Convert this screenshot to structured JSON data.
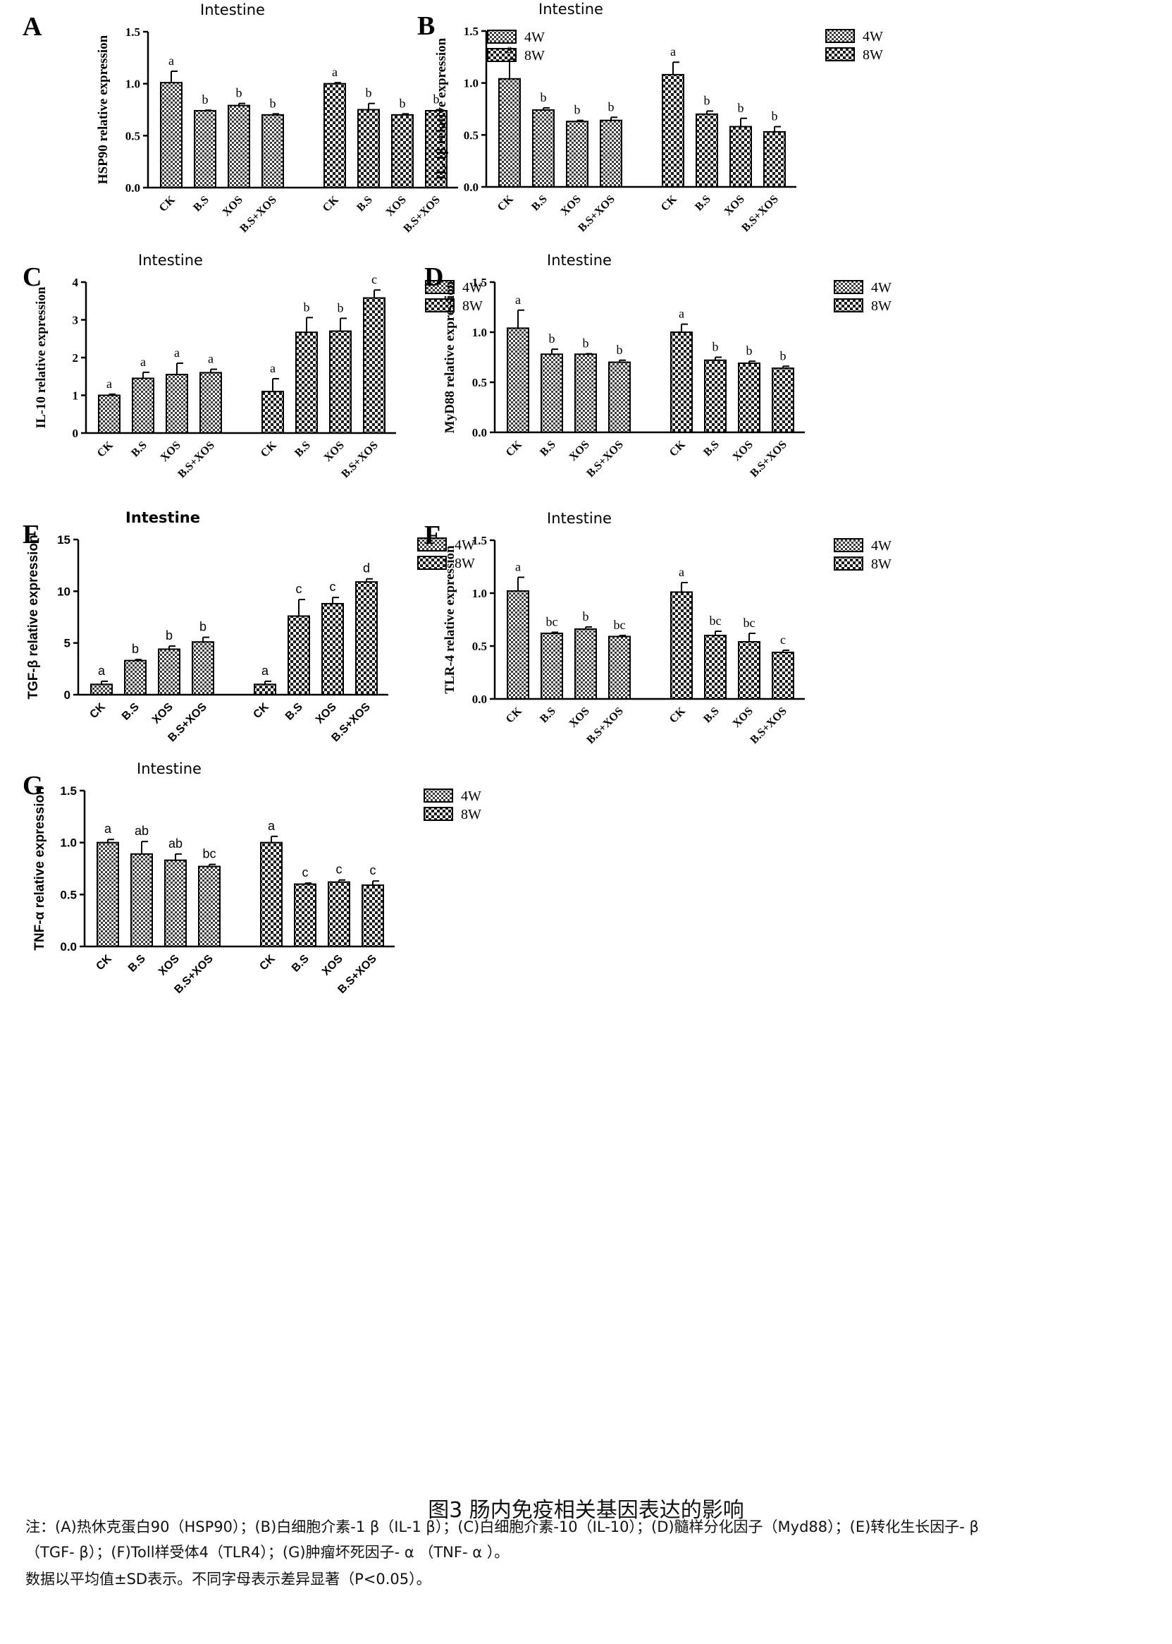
{
  "figure": {
    "caption": "图3 肠内免疫相关基因表达的影响",
    "note_line1": "注：(A)热休克蛋白90（HSP90）；(B)白细胞介素-1 β（IL-1 β）；(C)白细胞介素-10（IL-10）；(D)髓样分化因子（Myd88）；(E)转化生长因子- β",
    "note_line2": "（TGF- β）；(F)Toll样受体4（TLR4）；(G)肿瘤坏死因子- α （TNF- α ）。",
    "note_line3": "数据以平均值±SD表示。不同字母表示差异显著（P<0.05）。"
  },
  "colors": {
    "bar_fill_4w": "#3a3a3a",
    "bar_fill_8w": "#1a1a1a",
    "axis": "#000000",
    "background": "#ffffff"
  },
  "chart_data": [
    {
      "panel": "A",
      "type": "bar",
      "title": "Intestine",
      "title_bold": false,
      "ylabel": "HSP90  relative expression",
      "ylim": [
        0,
        1.5
      ],
      "yticks": [
        "0.0",
        "0.5",
        "1.0",
        "1.5"
      ],
      "categories": [
        "CK",
        "B.S",
        "XOS",
        "B.S+XOS"
      ],
      "series": [
        {
          "name": "4W",
          "values": [
            1.01,
            0.74,
            0.79,
            0.7
          ],
          "errors": [
            0.11,
            0.005,
            0.02,
            0.01
          ],
          "letters": [
            "a",
            "b",
            "b",
            "b"
          ]
        },
        {
          "name": "8W",
          "values": [
            1.0,
            0.75,
            0.7,
            0.74
          ],
          "errors": [
            0.01,
            0.06,
            0.01,
            0.01
          ],
          "letters": [
            "a",
            "b",
            "b",
            "b"
          ]
        }
      ],
      "legend": "top-right"
    },
    {
      "panel": "B",
      "type": "bar",
      "title": "Intestine",
      "title_bold": false,
      "ylabel": "IL-1β   relative expression",
      "ylim": [
        0,
        1.5
      ],
      "yticks": [
        "0.0",
        "0.5",
        "1.0",
        "1.5"
      ],
      "categories": [
        "CK",
        "B.S",
        "XOS",
        "B.S+XOS"
      ],
      "series": [
        {
          "name": "4W",
          "values": [
            1.04,
            0.74,
            0.63,
            0.64
          ],
          "errors": [
            0.19,
            0.02,
            0.01,
            0.03
          ],
          "letters": [
            "a",
            "b",
            "b",
            "b"
          ]
        },
        {
          "name": "8W",
          "values": [
            1.08,
            0.7,
            0.58,
            0.53
          ],
          "errors": [
            0.12,
            0.03,
            0.08,
            0.05
          ],
          "letters": [
            "a",
            "b",
            "b",
            "b"
          ]
        }
      ],
      "legend": "top-right"
    },
    {
      "panel": "C",
      "type": "bar",
      "title": "Intestine",
      "title_bold": false,
      "ylabel": "IL-10  relative expression",
      "ylim": [
        0,
        4
      ],
      "yticks": [
        "0",
        "1",
        "2",
        "3",
        "4"
      ],
      "categories": [
        "CK",
        "B.S",
        "XOS",
        "B.S+XOS"
      ],
      "series": [
        {
          "name": "4W",
          "values": [
            1.0,
            1.45,
            1.55,
            1.6
          ],
          "errors": [
            0.03,
            0.16,
            0.3,
            0.09
          ],
          "letters": [
            "a",
            "a",
            "a",
            "a"
          ]
        },
        {
          "name": "8W",
          "values": [
            1.1,
            2.67,
            2.7,
            3.58
          ],
          "errors": [
            0.34,
            0.39,
            0.34,
            0.21
          ],
          "letters": [
            "a",
            "b",
            "b",
            "c"
          ]
        }
      ],
      "legend": "top-right"
    },
    {
      "panel": "D",
      "type": "bar",
      "title": "Intestine",
      "title_bold": false,
      "ylabel": "MyD88  relative expression",
      "ylim": [
        0,
        1.5
      ],
      "yticks": [
        "0.0",
        "0.5",
        "1.0",
        "1.5"
      ],
      "categories": [
        "CK",
        "B.S",
        "XOS",
        "B.S+XOS"
      ],
      "series": [
        {
          "name": "4W",
          "values": [
            1.04,
            0.78,
            0.78,
            0.7
          ],
          "errors": [
            0.18,
            0.05,
            0.005,
            0.02
          ],
          "letters": [
            "a",
            "b",
            "b",
            "b"
          ]
        },
        {
          "name": "8W",
          "values": [
            1.0,
            0.72,
            0.69,
            0.64
          ],
          "errors": [
            0.08,
            0.03,
            0.02,
            0.02
          ],
          "letters": [
            "a",
            "b",
            "b",
            "b"
          ]
        }
      ],
      "legend": "top-right"
    },
    {
      "panel": "E",
      "type": "bar",
      "title": "Intestine",
      "title_bold": true,
      "ylabel": "TGF-β    relative expression",
      "ylim": [
        0,
        15
      ],
      "yticks": [
        "0",
        "5",
        "10",
        "15"
      ],
      "categories": [
        "CK",
        "B.S",
        "XOS",
        "B.S+XOS"
      ],
      "series": [
        {
          "name": "4W",
          "values": [
            1.0,
            3.3,
            4.4,
            5.1
          ],
          "errors": [
            0.3,
            0.1,
            0.3,
            0.45
          ],
          "letters": [
            "a",
            "b",
            "b",
            "b"
          ]
        },
        {
          "name": "8W",
          "values": [
            1.0,
            7.6,
            8.8,
            10.9
          ],
          "errors": [
            0.3,
            1.6,
            0.6,
            0.3
          ],
          "letters": [
            "a",
            "c",
            "c",
            "d"
          ]
        }
      ],
      "legend": "top-right"
    },
    {
      "panel": "F",
      "type": "bar",
      "title": "Intestine",
      "title_bold": false,
      "ylabel": "TLR-4  relative expression",
      "ylim": [
        0,
        1.5
      ],
      "yticks": [
        "0.0",
        "0.5",
        "1.0",
        "1.5"
      ],
      "categories": [
        "CK",
        "B.S",
        "XOS",
        "B.S+XOS"
      ],
      "series": [
        {
          "name": "4W",
          "values": [
            1.02,
            0.62,
            0.66,
            0.59
          ],
          "errors": [
            0.13,
            0.01,
            0.02,
            0.01
          ],
          "letters": [
            "a",
            "bc",
            "b",
            "bc"
          ]
        },
        {
          "name": "8W",
          "values": [
            1.01,
            0.6,
            0.54,
            0.44
          ],
          "errors": [
            0.09,
            0.04,
            0.08,
            0.02
          ],
          "letters": [
            "a",
            "bc",
            "bc",
            "c"
          ]
        }
      ],
      "legend": "top-right"
    },
    {
      "panel": "G",
      "type": "bar",
      "title": "Intestine",
      "title_bold": false,
      "ylabel": "TNF-α    relative expression",
      "ylim": [
        0,
        1.5
      ],
      "yticks": [
        "0.0",
        "0.5",
        "1.0",
        "1.5"
      ],
      "categories": [
        "CK",
        "B.S",
        "XOS",
        "B.S+XOS"
      ],
      "series": [
        {
          "name": "4W",
          "values": [
            1.0,
            0.89,
            0.83,
            0.77
          ],
          "errors": [
            0.03,
            0.12,
            0.06,
            0.02
          ],
          "letters": [
            "a",
            "ab",
            "ab",
            "bc"
          ]
        },
        {
          "name": "8W",
          "values": [
            1.0,
            0.6,
            0.62,
            0.59
          ],
          "errors": [
            0.06,
            0.01,
            0.02,
            0.04
          ],
          "letters": [
            "a",
            "c",
            "c",
            "c"
          ]
        }
      ],
      "legend": "top-right"
    }
  ]
}
